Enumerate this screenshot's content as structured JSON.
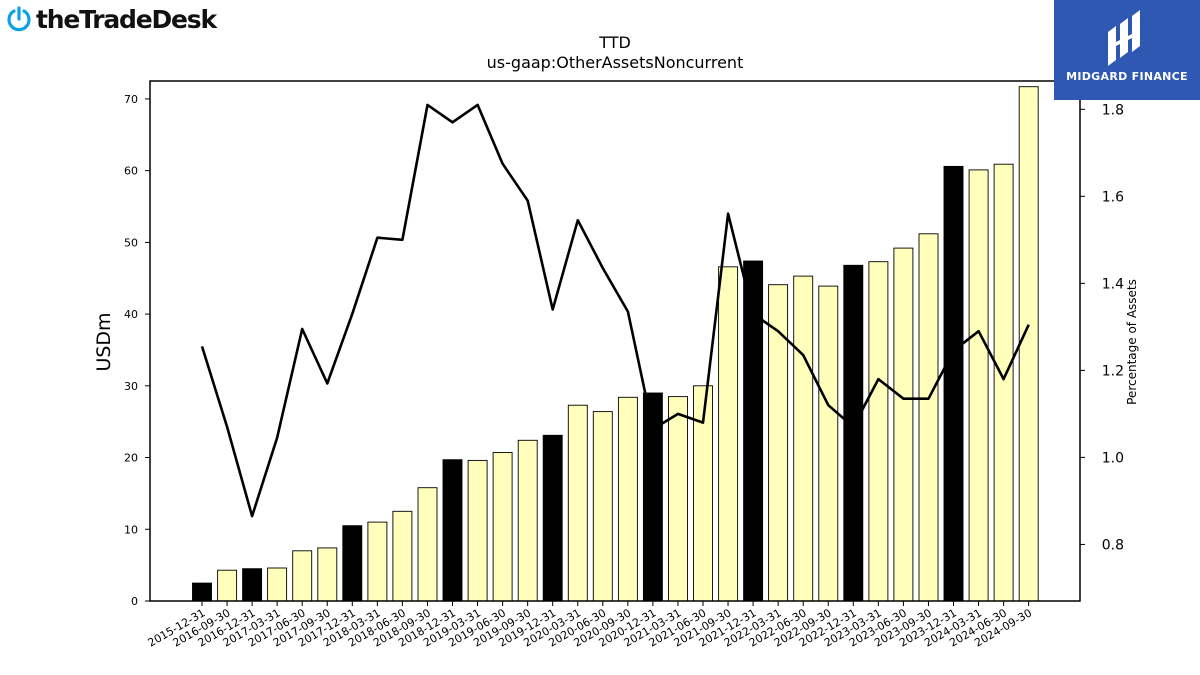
{
  "brand": {
    "logo_text": "theTradeDesk",
    "icon": "power-clock-icon"
  },
  "badge": {
    "text": "MIDGARD FINANCE",
    "icon": "midgard-logo-icon",
    "color": "#2f58b3"
  },
  "chart_data": {
    "type": "bar",
    "title": "TTD",
    "subtitle": "us-gaap:OtherAssetsNoncurrent",
    "ylabel": "USDm",
    "y2label": "Percentage of Assets",
    "ylim": [
      0,
      72.5
    ],
    "y2lim": [
      0.67,
      1.865
    ],
    "yticks": [
      0,
      10,
      20,
      30,
      40,
      50,
      60,
      70
    ],
    "y2ticks": [
      0.8,
      1.0,
      1.2,
      1.4,
      1.6,
      1.8
    ],
    "y2tick_labels": [
      "0.8",
      "1.0",
      "1.2",
      "1.4",
      "1.6",
      "1.8"
    ],
    "grid": false,
    "colors": {
      "q4_bar": "#000000",
      "other_bar": "#ffffbb",
      "line": "#000000"
    },
    "categories": [
      "2015-12-31",
      "2016-09-30",
      "2016-12-31",
      "2017-03-31",
      "2017-06-30",
      "2017-09-30",
      "2017-12-31",
      "2018-03-31",
      "2018-06-30",
      "2018-09-30",
      "2018-12-31",
      "2019-03-31",
      "2019-06-30",
      "2019-09-30",
      "2019-12-31",
      "2020-03-31",
      "2020-06-30",
      "2020-09-30",
      "2020-12-31",
      "2021-03-31",
      "2021-06-30",
      "2021-09-30",
      "2021-12-31",
      "2022-03-31",
      "2022-06-30",
      "2022-09-30",
      "2022-12-31",
      "2023-03-31",
      "2023-06-30",
      "2023-09-30",
      "2023-12-31",
      "2024-03-31",
      "2024-06-30",
      "2024-09-30"
    ],
    "series": [
      {
        "type": "bar",
        "axis": "left",
        "values": [
          2.5,
          4.3,
          4.5,
          4.6,
          7.0,
          7.4,
          10.5,
          11.0,
          12.5,
          15.8,
          19.7,
          19.6,
          20.7,
          22.4,
          23.1,
          27.3,
          26.4,
          28.4,
          29.0,
          28.5,
          30.0,
          46.6,
          47.4,
          44.1,
          45.3,
          43.9,
          46.8,
          47.3,
          49.2,
          51.2,
          60.6,
          60.1,
          60.9,
          71.7
        ]
      },
      {
        "type": "line",
        "axis": "right",
        "values": [
          1.255,
          1.07,
          0.865,
          1.045,
          1.295,
          1.17,
          1.33,
          1.505,
          1.5,
          1.81,
          1.77,
          1.81,
          1.675,
          1.59,
          1.34,
          1.545,
          1.435,
          1.335,
          1.065,
          1.1,
          1.08,
          1.56,
          1.33,
          1.29,
          1.235,
          1.12,
          1.07,
          1.18,
          1.135,
          1.135,
          1.245,
          1.29,
          1.18,
          1.305
        ]
      }
    ]
  }
}
